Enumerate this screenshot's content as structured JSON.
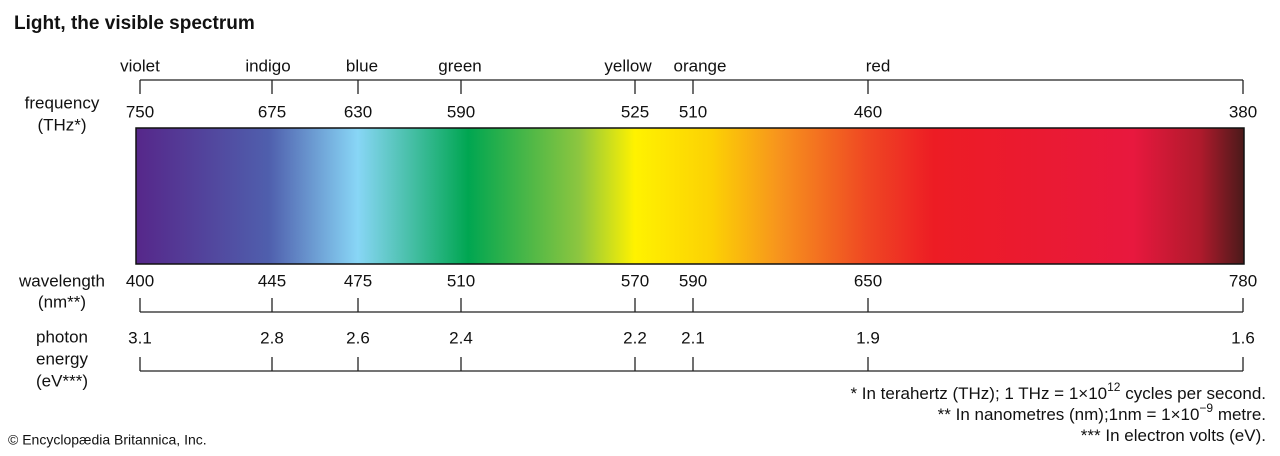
{
  "title": "Light, the visible spectrum",
  "colors": [
    "violet",
    "indigo",
    "blue",
    "green",
    "yellow",
    "orange",
    "red"
  ],
  "frequency": {
    "label": [
      "frequency",
      "(THz*)"
    ],
    "ticks": [
      750,
      675,
      630,
      590,
      525,
      510,
      460,
      380
    ]
  },
  "wavelength": {
    "label": [
      "wavelength",
      "(nm**)"
    ],
    "ticks": [
      400,
      445,
      475,
      510,
      570,
      590,
      650,
      780
    ]
  },
  "energy": {
    "label": [
      "photon",
      "energy",
      "(eV***)"
    ],
    "ticks": [
      3.1,
      2.8,
      2.6,
      2.4,
      2.2,
      2.1,
      1.9,
      1.6
    ]
  },
  "footnotes": [
    {
      "text": "* In terahertz (THz); 1 THz = 1×10",
      "sup": "12",
      "tail": " cycles per second."
    },
    {
      "text": "** In nanometres (nm);1nm = 1×10",
      "sup": "−9",
      "tail": " metre."
    },
    {
      "text": "*** In electron volts (eV)."
    }
  ],
  "copyright": "© Encyclopædia Britannica, Inc."
}
